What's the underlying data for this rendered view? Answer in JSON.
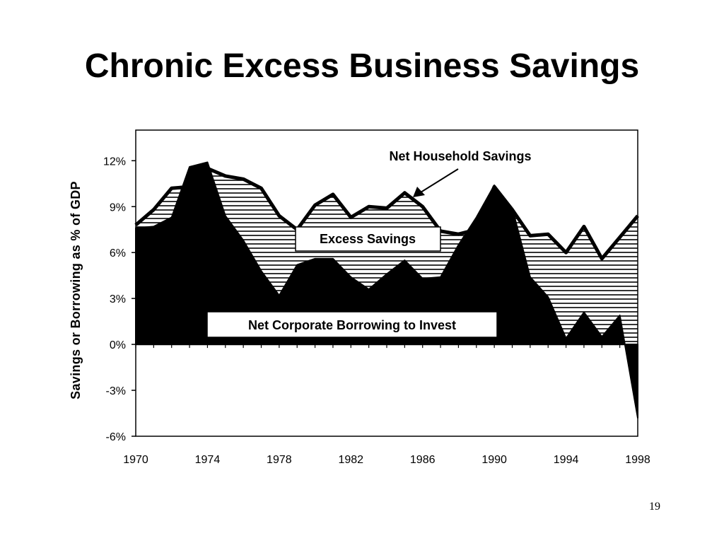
{
  "slide": {
    "title": "Chronic Excess Business Savings",
    "page_number": "19"
  },
  "colors": {
    "line": "#000000",
    "fill_corporate": "#000000",
    "hatch": "#000000",
    "background": "#ffffff"
  },
  "chart_data": {
    "type": "area",
    "ylabel": "Savings or Borrowing as % of GDP",
    "xlim": [
      1970,
      1998
    ],
    "ylim": [
      -6,
      14
    ],
    "x_ticks": [
      1970,
      1974,
      1978,
      1982,
      1986,
      1990,
      1994,
      1998
    ],
    "x_tick_labels": [
      "1970",
      "1974",
      "1978",
      "1982",
      "1986",
      "1990",
      "1994",
      "1998"
    ],
    "y_ticks": [
      -6,
      -3,
      0,
      3,
      6,
      9,
      12
    ],
    "y_tick_labels": [
      "-6%",
      "-3%",
      "0%",
      "3%",
      "6%",
      "9%",
      "12%"
    ],
    "x": [
      1970,
      1971,
      1972,
      1973,
      1974,
      1975,
      1976,
      1977,
      1978,
      1979,
      1980,
      1981,
      1982,
      1983,
      1984,
      1985,
      1986,
      1987,
      1988,
      1989,
      1990,
      1991,
      1992,
      1993,
      1994,
      1995,
      1996,
      1997,
      1998
    ],
    "series": [
      {
        "name": "Net Household Savings",
        "values": [
          7.8,
          8.8,
          10.2,
          10.3,
          11.5,
          11.0,
          10.8,
          10.2,
          8.4,
          7.5,
          9.1,
          9.8,
          8.3,
          9.0,
          8.9,
          9.9,
          9.0,
          7.4,
          7.2,
          7.5,
          10.3,
          8.8,
          7.1,
          7.2,
          6.0,
          7.7,
          5.6,
          7.0,
          8.4
        ]
      },
      {
        "name": "Net Corporate Borrowing to Invest",
        "values": [
          7.6,
          7.7,
          8.3,
          11.6,
          11.9,
          8.4,
          6.8,
          4.8,
          3.2,
          5.2,
          5.6,
          5.6,
          4.4,
          3.6,
          4.6,
          5.5,
          4.3,
          4.4,
          6.5,
          8.3,
          10.4,
          8.9,
          4.4,
          3.1,
          0.4,
          2.1,
          0.5,
          1.9,
          -4.8
        ]
      }
    ],
    "annotations": [
      {
        "text": "Net Household Savings",
        "arrow": true
      },
      {
        "text": "Excess Savings"
      },
      {
        "text": "Net Corporate Borrowing to Invest"
      }
    ]
  }
}
